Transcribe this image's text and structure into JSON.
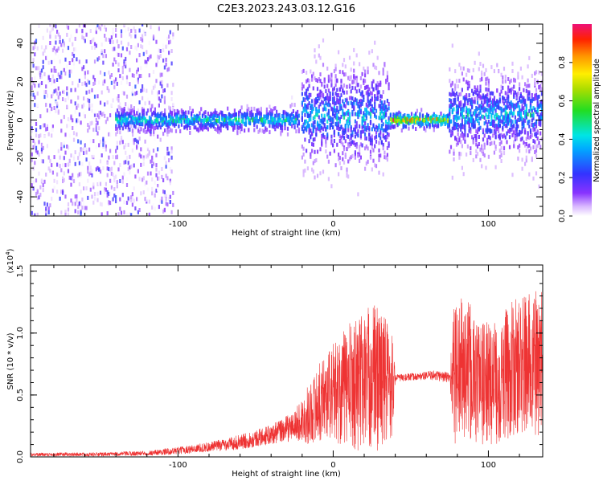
{
  "title": "C2E3.2023.243.03.12.G16",
  "colors": {
    "snr_line": "#ee3333",
    "axis": "#000000",
    "colorbar": [
      "#5500cc",
      "#3333ff",
      "#00aaff",
      "#00e5e5",
      "#22dd22",
      "#aadd00",
      "#ffee00",
      "#ff9900",
      "#ff2200",
      "#ee1177"
    ]
  },
  "chart_data": [
    {
      "type": "heatmap",
      "xlabel": "Height of straight line (km)",
      "ylabel": "Frequency (Hz)",
      "xlim": [
        -195,
        135
      ],
      "ylim": [
        -50,
        50
      ],
      "x_ticks": [
        -100,
        0,
        100
      ],
      "x_tick_labels": [
        "-100",
        "0",
        "100"
      ],
      "y_ticks": [
        -40,
        -20,
        0,
        20,
        40
      ],
      "y_tick_labels": [
        "-40",
        "-20",
        "0",
        "20",
        "40"
      ],
      "colorbar": {
        "label": "Normalized spectral amplitude",
        "range": [
          0,
          1
        ],
        "ticks": [
          0.0,
          0.2,
          0.4,
          0.6,
          0.8
        ],
        "tick_labels": [
          "0.0",
          "0.2",
          "0.4",
          "0.6",
          "0.8"
        ]
      },
      "segments": [
        {
          "x": [
            -195,
            -103
          ],
          "center": 0,
          "spread": 50,
          "amplitude": 0.1,
          "pattern": "broadband noise"
        },
        {
          "x": [
            -140,
            -22
          ],
          "center": 0,
          "spread": 3,
          "amplitude": 0.5,
          "pattern": "narrow band near 0 Hz"
        },
        {
          "x": [
            -20,
            36
          ],
          "center": 2,
          "spread": 25,
          "amplitude": 0.35,
          "pattern": "broadband"
        },
        {
          "x": [
            37,
            75
          ],
          "center": 0,
          "spread": 2,
          "amplitude": 0.85,
          "pattern": "narrow band near 0 Hz"
        },
        {
          "x": [
            75,
            135
          ],
          "center": 3,
          "spread": 20,
          "amplitude": 0.35,
          "pattern": "broadband"
        }
      ]
    },
    {
      "type": "line",
      "xlabel": "Height of straight line (km)",
      "ylabel": "SNR (10 * v/v)",
      "y_scale_label": "(x10",
      "y_scale_exponent": "4",
      "y_scale_suffix": ")",
      "xlim": [
        -195,
        135
      ],
      "ylim": [
        0,
        1.55
      ],
      "x_ticks": [
        -100,
        0,
        100
      ],
      "x_tick_labels": [
        "-100",
        "0",
        "100"
      ],
      "y_ticks": [
        0,
        0.5,
        1.0,
        1.5
      ],
      "y_tick_labels": [
        "0.0",
        "0.5",
        "1.0",
        "1.5"
      ],
      "series": [
        {
          "x": [
            -195,
            -150,
            -120,
            -100,
            -80,
            -60,
            -40,
            -25,
            -15,
            -5,
            5,
            15,
            25,
            30,
            38,
            40,
            45,
            55,
            65,
            75,
            78,
            85,
            95,
            105,
            115,
            125,
            135
          ],
          "center": [
            0.02,
            0.02,
            0.03,
            0.05,
            0.08,
            0.12,
            0.18,
            0.25,
            0.35,
            0.5,
            0.55,
            0.6,
            0.65,
            0.65,
            0.6,
            0.64,
            0.64,
            0.65,
            0.66,
            0.64,
            0.7,
            0.7,
            0.6,
            0.6,
            0.7,
            0.75,
            0.75
          ],
          "spread": [
            0.015,
            0.015,
            0.02,
            0.03,
            0.04,
            0.06,
            0.08,
            0.12,
            0.25,
            0.35,
            0.45,
            0.55,
            0.6,
            0.6,
            0.45,
            0.03,
            0.03,
            0.03,
            0.04,
            0.05,
            0.6,
            0.6,
            0.5,
            0.5,
            0.55,
            0.6,
            0.6
          ]
        }
      ]
    }
  ]
}
